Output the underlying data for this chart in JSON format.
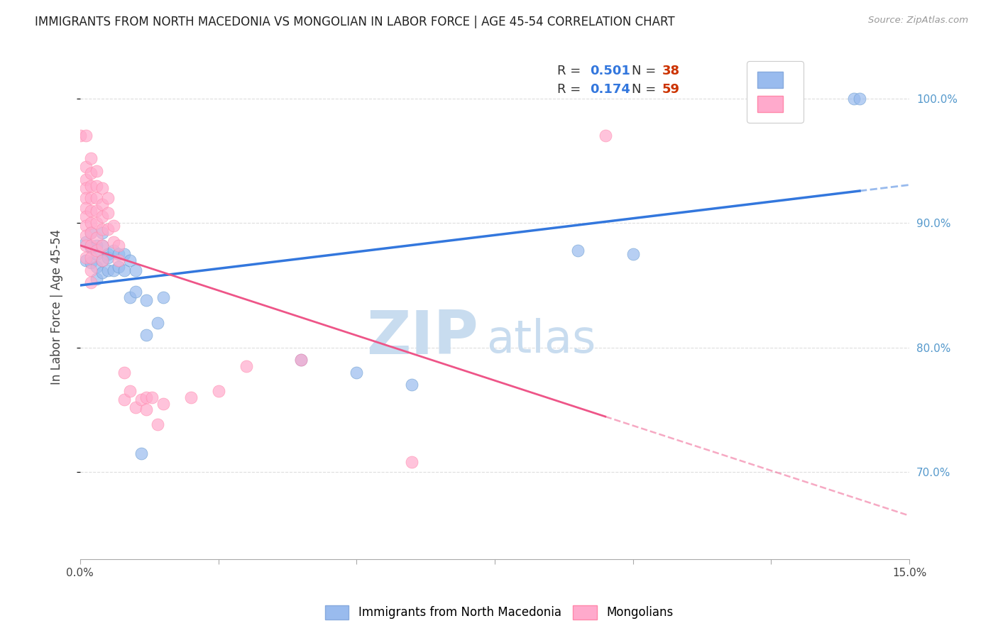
{
  "title": "IMMIGRANTS FROM NORTH MACEDONIA VS MONGOLIAN IN LABOR FORCE | AGE 45-54 CORRELATION CHART",
  "source": "Source: ZipAtlas.com",
  "ylabel": "In Labor Force | Age 45-54",
  "xmin": 0.0,
  "xmax": 0.15,
  "ymin": 0.63,
  "ymax": 1.035,
  "yticks": [
    0.7,
    0.8,
    0.9,
    1.0
  ],
  "ytick_labels": [
    "70.0%",
    "80.0%",
    "90.0%",
    "100.0%"
  ],
  "xticks": [
    0.0,
    0.025,
    0.05,
    0.075,
    0.1,
    0.125,
    0.15
  ],
  "xtick_labels": [
    "0.0%",
    "",
    "",
    "",
    "",
    "",
    "15.0%"
  ],
  "blue_color": "#99BBEE",
  "pink_color": "#FFAACC",
  "blue_line_color": "#3377DD",
  "pink_line_color": "#EE5588",
  "blue_scatter": [
    [
      0.001,
      0.87
    ],
    [
      0.001,
      0.885
    ],
    [
      0.002,
      0.868
    ],
    [
      0.002,
      0.88
    ],
    [
      0.002,
      0.892
    ],
    [
      0.003,
      0.875
    ],
    [
      0.003,
      0.865
    ],
    [
      0.003,
      0.855
    ],
    [
      0.003,
      0.882
    ],
    [
      0.004,
      0.87
    ],
    [
      0.004,
      0.882
    ],
    [
      0.004,
      0.892
    ],
    [
      0.004,
      0.86
    ],
    [
      0.005,
      0.875
    ],
    [
      0.005,
      0.862
    ],
    [
      0.005,
      0.872
    ],
    [
      0.006,
      0.878
    ],
    [
      0.006,
      0.862
    ],
    [
      0.007,
      0.865
    ],
    [
      0.007,
      0.875
    ],
    [
      0.008,
      0.862
    ],
    [
      0.008,
      0.875
    ],
    [
      0.009,
      0.87
    ],
    [
      0.009,
      0.84
    ],
    [
      0.01,
      0.862
    ],
    [
      0.01,
      0.845
    ],
    [
      0.011,
      0.715
    ],
    [
      0.012,
      0.81
    ],
    [
      0.012,
      0.838
    ],
    [
      0.014,
      0.82
    ],
    [
      0.015,
      0.84
    ],
    [
      0.04,
      0.79
    ],
    [
      0.05,
      0.78
    ],
    [
      0.06,
      0.77
    ],
    [
      0.09,
      0.878
    ],
    [
      0.1,
      0.875
    ],
    [
      0.14,
      1.0
    ],
    [
      0.141,
      1.0
    ]
  ],
  "pink_scatter": [
    [
      0.0,
      0.97
    ],
    [
      0.001,
      0.97
    ],
    [
      0.001,
      0.945
    ],
    [
      0.001,
      0.935
    ],
    [
      0.001,
      0.928
    ],
    [
      0.001,
      0.92
    ],
    [
      0.001,
      0.912
    ],
    [
      0.001,
      0.905
    ],
    [
      0.001,
      0.898
    ],
    [
      0.001,
      0.89
    ],
    [
      0.001,
      0.882
    ],
    [
      0.001,
      0.872
    ],
    [
      0.002,
      0.952
    ],
    [
      0.002,
      0.94
    ],
    [
      0.002,
      0.93
    ],
    [
      0.002,
      0.92
    ],
    [
      0.002,
      0.91
    ],
    [
      0.002,
      0.9
    ],
    [
      0.002,
      0.892
    ],
    [
      0.002,
      0.882
    ],
    [
      0.002,
      0.872
    ],
    [
      0.002,
      0.862
    ],
    [
      0.002,
      0.852
    ],
    [
      0.003,
      0.942
    ],
    [
      0.003,
      0.93
    ],
    [
      0.003,
      0.92
    ],
    [
      0.003,
      0.91
    ],
    [
      0.003,
      0.9
    ],
    [
      0.003,
      0.888
    ],
    [
      0.003,
      0.878
    ],
    [
      0.004,
      0.928
    ],
    [
      0.004,
      0.915
    ],
    [
      0.004,
      0.905
    ],
    [
      0.004,
      0.895
    ],
    [
      0.004,
      0.882
    ],
    [
      0.004,
      0.87
    ],
    [
      0.005,
      0.92
    ],
    [
      0.005,
      0.908
    ],
    [
      0.005,
      0.895
    ],
    [
      0.006,
      0.898
    ],
    [
      0.006,
      0.885
    ],
    [
      0.007,
      0.882
    ],
    [
      0.007,
      0.87
    ],
    [
      0.008,
      0.78
    ],
    [
      0.008,
      0.758
    ],
    [
      0.009,
      0.765
    ],
    [
      0.01,
      0.752
    ],
    [
      0.011,
      0.758
    ],
    [
      0.012,
      0.76
    ],
    [
      0.012,
      0.75
    ],
    [
      0.013,
      0.76
    ],
    [
      0.014,
      0.738
    ],
    [
      0.015,
      0.755
    ],
    [
      0.02,
      0.76
    ],
    [
      0.025,
      0.765
    ],
    [
      0.03,
      0.785
    ],
    [
      0.04,
      0.79
    ],
    [
      0.06,
      0.708
    ],
    [
      0.095,
      0.97
    ]
  ],
  "watermark_zip": "ZIP",
  "watermark_atlas": "atlas",
  "bg_color": "#FFFFFF",
  "grid_color": "#DDDDDD",
  "title_color": "#222222",
  "right_axis_color": "#5599CC"
}
